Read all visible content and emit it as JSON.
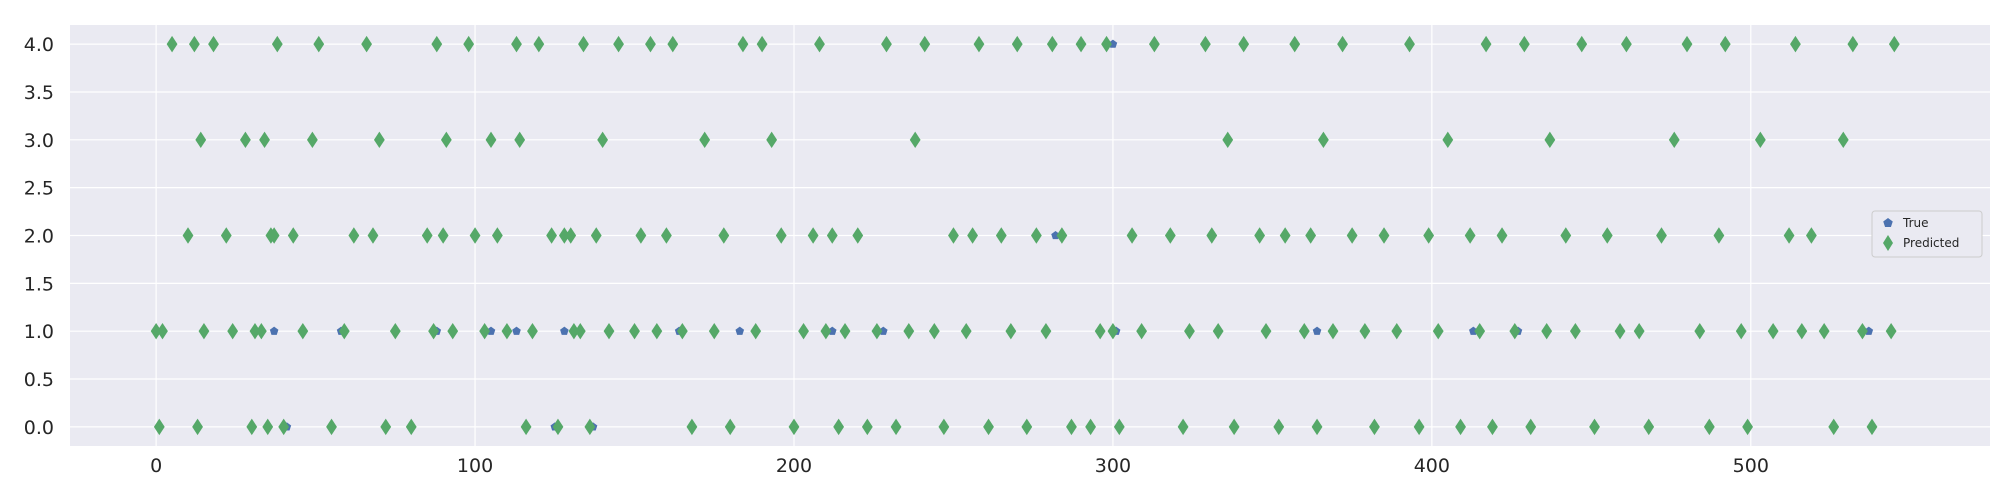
{
  "chart_data": {
    "type": "scatter",
    "title": "",
    "xlabel": "",
    "ylabel": "",
    "xlim": [
      -27,
      575
    ],
    "ylim": [
      -0.2,
      4.2
    ],
    "xticks": [
      0,
      100,
      200,
      300,
      400,
      500
    ],
    "xtick_labels": [
      "0",
      "100",
      "200",
      "300",
      "400",
      "500"
    ],
    "yticks": [
      0,
      0.5,
      1,
      1.5,
      2,
      2.5,
      3,
      3.5,
      4
    ],
    "ytick_labels": [
      "0.0",
      "0.5",
      "1.0",
      "1.5",
      "2.0",
      "2.5",
      "3.0",
      "3.5",
      "4.0"
    ],
    "grid": true,
    "legend_position": "right",
    "background_color": "#eaeaf2",
    "series": [
      {
        "name": "True",
        "marker": "pentagon",
        "color": "#4c72b0",
        "x": [
          0,
          1,
          2,
          5,
          10,
          12,
          13,
          14,
          15,
          18,
          22,
          24,
          28,
          30,
          31,
          33,
          34,
          35,
          36,
          37,
          38,
          40,
          43,
          46,
          49,
          51,
          55,
          59,
          62,
          66,
          68,
          70,
          72,
          75,
          80,
          85,
          87,
          88,
          90,
          91,
          93,
          98,
          100,
          103,
          105,
          107,
          110,
          113,
          114,
          116,
          118,
          120,
          124,
          126,
          128,
          130,
          131,
          133,
          134,
          136,
          138,
          140,
          142,
          145,
          150,
          152,
          155,
          157,
          160,
          162,
          165,
          168,
          172,
          175,
          178,
          180,
          184,
          188,
          190,
          193,
          196,
          200,
          203,
          206,
          208,
          210,
          212,
          214,
          216,
          220,
          223,
          226,
          229,
          232,
          236,
          238,
          241,
          244,
          247,
          250,
          254,
          256,
          258,
          261,
          265,
          268,
          270,
          273,
          276,
          279,
          281,
          284,
          287,
          290,
          293,
          296,
          298,
          300,
          302,
          306,
          309,
          313,
          318,
          322,
          324,
          329,
          331,
          333,
          336,
          338,
          341,
          346,
          348,
          352,
          354,
          357,
          360,
          362,
          364,
          366,
          369,
          372,
          375,
          379,
          382,
          385,
          389,
          393,
          396,
          399,
          402,
          405,
          409,
          412,
          415,
          417,
          419,
          422,
          426,
          429,
          431,
          436,
          437,
          442,
          445,
          447,
          451,
          455,
          459,
          461,
          465,
          468,
          472,
          476,
          480,
          484,
          487,
          490,
          492,
          497,
          499,
          503,
          507,
          512,
          514,
          516,
          519,
          523,
          526,
          529,
          532,
          535,
          538,
          541,
          544,
          545
        ],
        "y": [
          1,
          0,
          1,
          4,
          2,
          4,
          0,
          3,
          1,
          4,
          2,
          1,
          3,
          0,
          1,
          1,
          3,
          0,
          2,
          2,
          4,
          0,
          2,
          1,
          3,
          4,
          0,
          1,
          2,
          4,
          2,
          3,
          0,
          1,
          0,
          2,
          1,
          4,
          2,
          3,
          1,
          4,
          2,
          1,
          3,
          2,
          1,
          4,
          3,
          0,
          1,
          4,
          2,
          0,
          2,
          2,
          1,
          1,
          4,
          0,
          2,
          3,
          1,
          4,
          1,
          2,
          4,
          1,
          2,
          4,
          1,
          0,
          3,
          1,
          2,
          0,
          4,
          1,
          4,
          3,
          2,
          0,
          1,
          2,
          4,
          1,
          2,
          0,
          1,
          2,
          0,
          1,
          4,
          0,
          1,
          3,
          4,
          1,
          0,
          2,
          1,
          2,
          4,
          0,
          2,
          1,
          4,
          0,
          2,
          1,
          4,
          2,
          0,
          4,
          0,
          1,
          4,
          1,
          0,
          2,
          1,
          4,
          2,
          0,
          1,
          4,
          2,
          1,
          3,
          0,
          4,
          2,
          1,
          0,
          2,
          4,
          1,
          2,
          0,
          3,
          1,
          4,
          2,
          1,
          0,
          2,
          1,
          4,
          0,
          2,
          1,
          3,
          0,
          2,
          1,
          4,
          0,
          2,
          1,
          4,
          0,
          1,
          3,
          2,
          1,
          4,
          0,
          2,
          1,
          4,
          1,
          0,
          2,
          3,
          4,
          1,
          0,
          2,
          4,
          1,
          0,
          3,
          1,
          2,
          4,
          1,
          2,
          1,
          0,
          3,
          4,
          1,
          0,
          2,
          1,
          4
        ],
        "extra_true_only_points": [
          {
            "x": 37,
            "y": 1
          },
          {
            "x": 41,
            "y": 0
          },
          {
            "x": 58,
            "y": 1
          },
          {
            "x": 88,
            "y": 1
          },
          {
            "x": 105,
            "y": 1
          },
          {
            "x": 113,
            "y": 1
          },
          {
            "x": 125,
            "y": 0
          },
          {
            "x": 128,
            "y": 1
          },
          {
            "x": 137,
            "y": 0
          },
          {
            "x": 164,
            "y": 1
          },
          {
            "x": 183,
            "y": 1
          },
          {
            "x": 212,
            "y": 1
          },
          {
            "x": 228,
            "y": 1
          },
          {
            "x": 282,
            "y": 2
          },
          {
            "x": 300,
            "y": 4
          },
          {
            "x": 301,
            "y": 1
          },
          {
            "x": 364,
            "y": 1
          },
          {
            "x": 413,
            "y": 1
          },
          {
            "x": 427,
            "y": 1
          },
          {
            "x": 436,
            "y": 1
          },
          {
            "x": 445,
            "y": 1
          },
          {
            "x": 516,
            "y": 1
          },
          {
            "x": 523,
            "y": 1
          },
          {
            "x": 537,
            "y": 1
          }
        ]
      },
      {
        "name": "Predicted",
        "marker": "diamond",
        "color": "#55a868",
        "x": [
          0,
          1,
          2,
          5,
          10,
          12,
          13,
          14,
          15,
          18,
          22,
          24,
          28,
          30,
          31,
          33,
          34,
          35,
          36,
          37,
          38,
          40,
          43,
          46,
          49,
          51,
          55,
          59,
          62,
          66,
          68,
          70,
          72,
          75,
          80,
          85,
          87,
          88,
          90,
          91,
          93,
          98,
          100,
          103,
          105,
          107,
          110,
          113,
          114,
          116,
          118,
          120,
          124,
          126,
          128,
          130,
          131,
          133,
          134,
          136,
          138,
          140,
          142,
          145,
          150,
          152,
          155,
          157,
          160,
          162,
          165,
          168,
          172,
          175,
          178,
          180,
          184,
          188,
          190,
          193,
          196,
          200,
          203,
          206,
          208,
          210,
          212,
          214,
          216,
          220,
          223,
          226,
          229,
          232,
          236,
          238,
          241,
          244,
          247,
          250,
          254,
          256,
          258,
          261,
          265,
          268,
          270,
          273,
          276,
          279,
          281,
          284,
          287,
          290,
          293,
          296,
          298,
          300,
          302,
          306,
          309,
          313,
          318,
          322,
          324,
          329,
          331,
          333,
          336,
          338,
          341,
          346,
          348,
          352,
          354,
          357,
          360,
          362,
          364,
          366,
          369,
          372,
          375,
          379,
          382,
          385,
          389,
          393,
          396,
          399,
          402,
          405,
          409,
          412,
          415,
          417,
          419,
          422,
          426,
          429,
          431,
          436,
          437,
          442,
          445,
          447,
          451,
          455,
          459,
          461,
          465,
          468,
          472,
          476,
          480,
          484,
          487,
          490,
          492,
          497,
          499,
          503,
          507,
          512,
          514,
          516,
          519,
          523,
          526,
          529,
          532,
          535,
          538,
          541,
          544,
          545
        ],
        "y": [
          1,
          0,
          1,
          4,
          2,
          4,
          0,
          3,
          1,
          4,
          2,
          1,
          3,
          0,
          1,
          1,
          3,
          0,
          2,
          2,
          4,
          0,
          2,
          1,
          3,
          4,
          0,
          1,
          2,
          4,
          2,
          3,
          0,
          1,
          0,
          2,
          1,
          4,
          2,
          3,
          1,
          4,
          2,
          1,
          3,
          2,
          1,
          4,
          3,
          0,
          1,
          4,
          2,
          0,
          2,
          2,
          1,
          1,
          4,
          0,
          2,
          3,
          1,
          4,
          1,
          2,
          4,
          1,
          2,
          4,
          1,
          0,
          3,
          1,
          2,
          0,
          4,
          1,
          4,
          3,
          2,
          0,
          1,
          2,
          4,
          1,
          2,
          0,
          1,
          2,
          0,
          1,
          4,
          0,
          1,
          3,
          4,
          1,
          0,
          2,
          1,
          2,
          4,
          0,
          2,
          1,
          4,
          0,
          2,
          1,
          4,
          2,
          0,
          4,
          0,
          1,
          4,
          1,
          0,
          2,
          1,
          4,
          2,
          0,
          1,
          4,
          2,
          1,
          3,
          0,
          4,
          2,
          1,
          0,
          2,
          4,
          1,
          2,
          0,
          3,
          1,
          4,
          2,
          1,
          0,
          2,
          1,
          4,
          0,
          2,
          1,
          3,
          0,
          2,
          1,
          4,
          0,
          2,
          1,
          4,
          0,
          1,
          3,
          2,
          1,
          4,
          0,
          2,
          1,
          4,
          1,
          0,
          2,
          3,
          4,
          1,
          0,
          2,
          4,
          1,
          0,
          3,
          1,
          2,
          4,
          1,
          2,
          1,
          0,
          3,
          4,
          1,
          0,
          2,
          1,
          4
        ]
      }
    ]
  }
}
